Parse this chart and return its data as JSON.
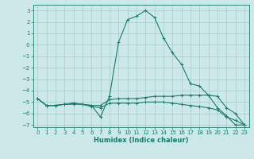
{
  "xlabel": "Humidex (Indice chaleur)",
  "background_color": "#cce8e8",
  "grid_color": "#aacfcf",
  "line_color": "#1a7a6e",
  "xlim": [
    -0.5,
    23.5
  ],
  "ylim": [
    -7.2,
    3.5
  ],
  "yticks": [
    -7,
    -6,
    -5,
    -4,
    -3,
    -2,
    -1,
    0,
    1,
    2,
    3
  ],
  "xticks": [
    0,
    1,
    2,
    3,
    4,
    5,
    6,
    7,
    8,
    9,
    10,
    11,
    12,
    13,
    14,
    15,
    16,
    17,
    18,
    19,
    20,
    21,
    22,
    23
  ],
  "curves": [
    {
      "x": [
        0,
        1,
        2,
        3,
        4,
        5,
        6,
        7,
        8,
        9,
        10,
        11,
        12,
        13,
        14,
        15,
        16,
        17,
        18,
        19,
        20,
        21,
        22,
        23
      ],
      "y": [
        -4.7,
        -5.3,
        -5.3,
        -5.2,
        -5.1,
        -5.2,
        -5.3,
        -6.3,
        -4.5,
        0.2,
        2.2,
        2.5,
        3.0,
        2.4,
        0.6,
        -0.7,
        -1.7,
        -3.4,
        -3.6,
        -4.4,
        -5.5,
        -6.2,
        -7.0,
        -7.0
      ]
    },
    {
      "x": [
        0,
        1,
        2,
        3,
        4,
        5,
        6,
        7,
        8,
        9,
        10,
        11,
        12,
        13,
        14,
        15,
        16,
        17,
        18,
        19,
        20,
        21,
        22,
        23
      ],
      "y": [
        -4.7,
        -5.3,
        -5.3,
        -5.2,
        -5.1,
        -5.2,
        -5.3,
        -5.3,
        -4.8,
        -4.7,
        -4.7,
        -4.7,
        -4.6,
        -4.5,
        -4.5,
        -4.5,
        -4.4,
        -4.4,
        -4.4,
        -4.4,
        -4.5,
        -5.5,
        -6.0,
        -7.0
      ]
    },
    {
      "x": [
        0,
        1,
        2,
        3,
        4,
        5,
        6,
        7,
        8,
        9,
        10,
        11,
        12,
        13,
        14,
        15,
        16,
        17,
        18,
        19,
        20,
        21,
        22,
        23
      ],
      "y": [
        -4.7,
        -5.3,
        -5.3,
        -5.2,
        -5.2,
        -5.2,
        -5.4,
        -5.5,
        -5.1,
        -5.1,
        -5.1,
        -5.1,
        -5.0,
        -5.0,
        -5.0,
        -5.1,
        -5.2,
        -5.3,
        -5.4,
        -5.5,
        -5.7,
        -6.3,
        -6.6,
        -7.0
      ]
    }
  ]
}
